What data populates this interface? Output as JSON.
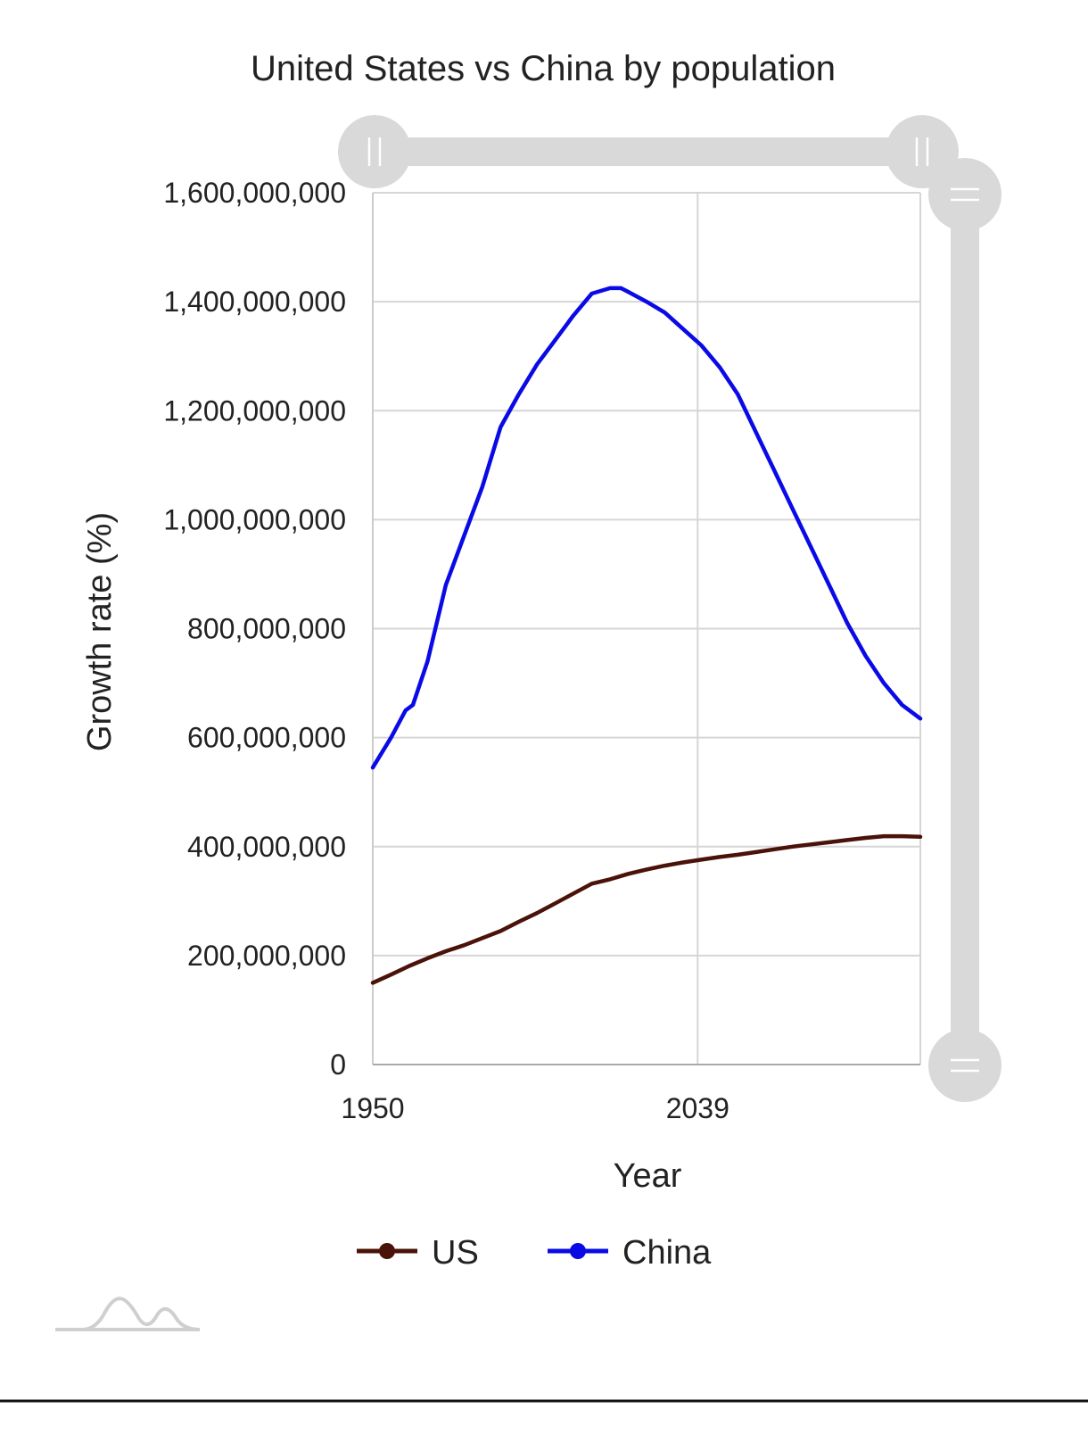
{
  "chart_data": {
    "type": "line",
    "title": "United States vs China by population",
    "xlabel": "Year",
    "ylabel": "Growth rate (%)",
    "xlim": [
      1950,
      2100
    ],
    "ylim": [
      0,
      1600000000
    ],
    "y_ticks": [
      0,
      200000000,
      400000000,
      600000000,
      800000000,
      1000000000,
      1200000000,
      1400000000,
      1600000000
    ],
    "y_tick_labels": [
      "0",
      "200,000,000",
      "400,000,000",
      "600,000,000",
      "800,000,000",
      "1,000,000,000",
      "1,200,000,000",
      "1,400,000,000",
      "1,600,000,000"
    ],
    "x_ticks": [
      1950,
      2039
    ],
    "x_tick_labels": [
      "1950",
      "2039"
    ],
    "grid": true,
    "legend_position": "bottom",
    "series": [
      {
        "name": "US",
        "color": "#4a1208",
        "x": [
          1950,
          1955,
          1960,
          1965,
          1970,
          1975,
          1980,
          1985,
          1990,
          1995,
          2000,
          2005,
          2010,
          2015,
          2020,
          2025,
          2030,
          2035,
          2040,
          2045,
          2050,
          2055,
          2060,
          2065,
          2070,
          2075,
          2080,
          2085,
          2090,
          2095,
          2100
        ],
        "values": [
          150000000,
          165000000,
          181000000,
          195000000,
          208000000,
          219000000,
          232000000,
          245000000,
          262000000,
          278000000,
          296000000,
          314000000,
          332000000,
          340000000,
          350000000,
          358000000,
          365000000,
          371000000,
          376000000,
          381000000,
          385000000,
          390000000,
          395000000,
          400000000,
          404000000,
          408000000,
          412000000,
          416000000,
          419000000,
          419000000,
          418000000
        ]
      },
      {
        "name": "China",
        "color": "#0a0ae6",
        "x": [
          1950,
          1955,
          1959,
          1961,
          1965,
          1970,
          1975,
          1980,
          1985,
          1990,
          1995,
          2000,
          2005,
          2010,
          2015,
          2018,
          2020,
          2025,
          2030,
          2035,
          2040,
          2045,
          2050,
          2055,
          2060,
          2065,
          2070,
          2075,
          2080,
          2085,
          2090,
          2095,
          2100
        ],
        "values": [
          545000000,
          600000000,
          650000000,
          660000000,
          740000000,
          880000000,
          970000000,
          1060000000,
          1170000000,
          1230000000,
          1285000000,
          1330000000,
          1375000000,
          1415000000,
          1425000000,
          1425000000,
          1418000000,
          1400000000,
          1380000000,
          1350000000,
          1320000000,
          1280000000,
          1230000000,
          1160000000,
          1090000000,
          1020000000,
          950000000,
          880000000,
          810000000,
          750000000,
          700000000,
          660000000,
          635000000
        ]
      }
    ]
  }
}
